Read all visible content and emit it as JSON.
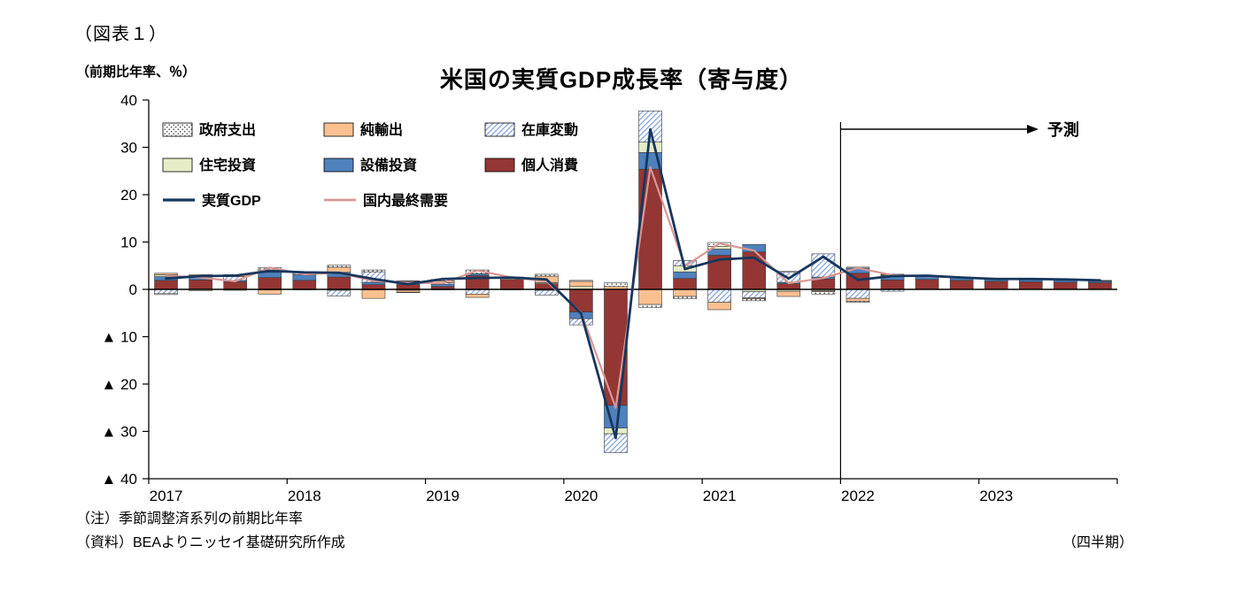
{
  "figure_label": "（図表１）",
  "notes": [
    "（注）季節調整済系列の前期比年率",
    "（資料）BEAよりニッセイ基礎研究所作成"
  ],
  "x_axis_note": "（四半期）",
  "chart_data": {
    "type": "bar",
    "subtype": "stacked-bar-with-lines",
    "title": "米国の実質GDP成長率（寄与度）",
    "unit_label": "（前期比年率、％）",
    "forecast_label": "予測",
    "forecast_start": "2022Q1",
    "ylim": [
      -40,
      40
    ],
    "grid": false,
    "legend_position": "top-left-inside",
    "y_tick_values": [
      40,
      30,
      20,
      10,
      0,
      -10,
      -20,
      -30,
      -40
    ],
    "y_tick_labels": [
      "40",
      "30",
      "20",
      "10",
      "0",
      "▲ 10",
      "▲ 20",
      "▲ 30",
      "▲ 40"
    ],
    "x_years": [
      "2017",
      "2018",
      "2019",
      "2020",
      "2021",
      "2022",
      "2023"
    ],
    "quarters": [
      "2017Q1",
      "2017Q2",
      "2017Q3",
      "2017Q4",
      "2018Q1",
      "2018Q2",
      "2018Q3",
      "2018Q4",
      "2019Q1",
      "2019Q2",
      "2019Q3",
      "2019Q4",
      "2020Q1",
      "2020Q2",
      "2020Q3",
      "2020Q4",
      "2021Q1",
      "2021Q2",
      "2021Q3",
      "2021Q4",
      "2022Q1",
      "2022Q2",
      "2022Q3",
      "2022Q4",
      "2023Q1",
      "2023Q2",
      "2023Q3",
      "2023Q4"
    ],
    "series": [
      {
        "key": "gov",
        "name": "政府支出",
        "fill": "pattern-dots"
      },
      {
        "key": "net",
        "name": "純輸出",
        "fill": "#FAC090"
      },
      {
        "key": "inv",
        "name": "在庫変動",
        "fill": "pattern-hatch"
      },
      {
        "key": "hous",
        "name": "住宅投資",
        "fill": "#E6EDC6"
      },
      {
        "key": "equip",
        "name": "設備投資",
        "fill": "#4F81BD"
      },
      {
        "key": "cons",
        "name": "個人消費",
        "fill": "#943634"
      }
    ],
    "lines": [
      {
        "key": "gdp",
        "name": "実質GDP",
        "color": "#17375E",
        "width": 2.8
      },
      {
        "key": "dfd",
        "name": "国内最終需要",
        "color": "#D99694",
        "width": 2.2
      }
    ],
    "values": {
      "gov": [
        -0.2,
        0.0,
        0.0,
        0.5,
        0.2,
        0.4,
        0.4,
        -0.1,
        0.3,
        0.8,
        0.3,
        0.4,
        0.2,
        0.8,
        -0.6,
        -0.5,
        0.8,
        -0.4,
        0.2,
        -0.5,
        -0.2,
        0.1,
        0.1,
        0.1,
        0.1,
        0.1,
        0.1,
        0.1
      ],
      "net": [
        0.3,
        0.2,
        0.4,
        -0.9,
        0.1,
        1.1,
        -1.8,
        -0.4,
        0.4,
        -0.7,
        0.0,
        1.4,
        1.1,
        0.6,
        -3.2,
        -1.5,
        -1.6,
        -0.2,
        -1.1,
        -0.2,
        -0.6,
        0.2,
        0.1,
        0.0,
        0.0,
        0.0,
        0.0,
        0.0
      ],
      "inv": [
        -0.9,
        0.1,
        0.8,
        -0.1,
        0.3,
        -1.2,
        2.2,
        0.1,
        0.3,
        -0.9,
        0.0,
        -1.0,
        -1.3,
        -4.0,
        6.6,
        1.1,
        -2.7,
        -1.3,
        2.1,
        4.9,
        -1.9,
        -0.4,
        0.0,
        0.0,
        0.0,
        0.0,
        0.0,
        0.0
      ],
      "hous": [
        0.4,
        -0.3,
        -0.2,
        0.5,
        -0.1,
        -0.2,
        -0.1,
        -0.2,
        -0.1,
        -0.1,
        0.2,
        0.2,
        0.6,
        -1.2,
        2.2,
        1.3,
        0.6,
        -0.5,
        -0.4,
        -0.3,
        0.2,
        0.1,
        0.0,
        0.0,
        0.0,
        0.1,
        0.1,
        0.1
      ],
      "equip": [
        0.8,
        0.8,
        0.3,
        1.1,
        1.2,
        1.0,
        0.5,
        0.7,
        0.5,
        0.4,
        -0.1,
        -0.2,
        -1.4,
        -4.8,
        3.5,
        1.4,
        1.3,
        1.6,
        0.3,
        0.4,
        1.1,
        0.8,
        0.6,
        0.5,
        0.4,
        0.4,
        0.4,
        0.3
      ],
      "cons": [
        1.9,
        2.0,
        1.6,
        2.5,
        1.9,
        2.6,
        1.0,
        1.0,
        0.6,
        2.9,
        2.1,
        1.2,
        -4.8,
        -24.5,
        25.4,
        2.3,
        7.2,
        7.9,
        1.2,
        2.2,
        3.4,
        2.0,
        2.1,
        1.9,
        1.7,
        1.6,
        1.5,
        1.4
      ],
      "gdp": [
        2.3,
        2.8,
        2.9,
        3.9,
        3.6,
        3.5,
        2.2,
        1.1,
        2.2,
        2.4,
        2.5,
        2.1,
        -5.1,
        -31.4,
        33.8,
        4.3,
        6.3,
        6.7,
        2.3,
        6.9,
        2.0,
        2.8,
        2.9,
        2.5,
        2.2,
        2.2,
        2.1,
        1.9
      ],
      "dfd": [
        2.9,
        2.5,
        1.7,
        4.6,
        3.2,
        3.5,
        1.8,
        1.4,
        1.3,
        4.0,
        2.5,
        1.7,
        -4.9,
        -25.0,
        25.8,
        4.9,
        9.7,
        8.2,
        1.3,
        2.4,
        4.5,
        3.0,
        2.8,
        2.5,
        2.2,
        2.2,
        2.1,
        1.9
      ]
    }
  }
}
